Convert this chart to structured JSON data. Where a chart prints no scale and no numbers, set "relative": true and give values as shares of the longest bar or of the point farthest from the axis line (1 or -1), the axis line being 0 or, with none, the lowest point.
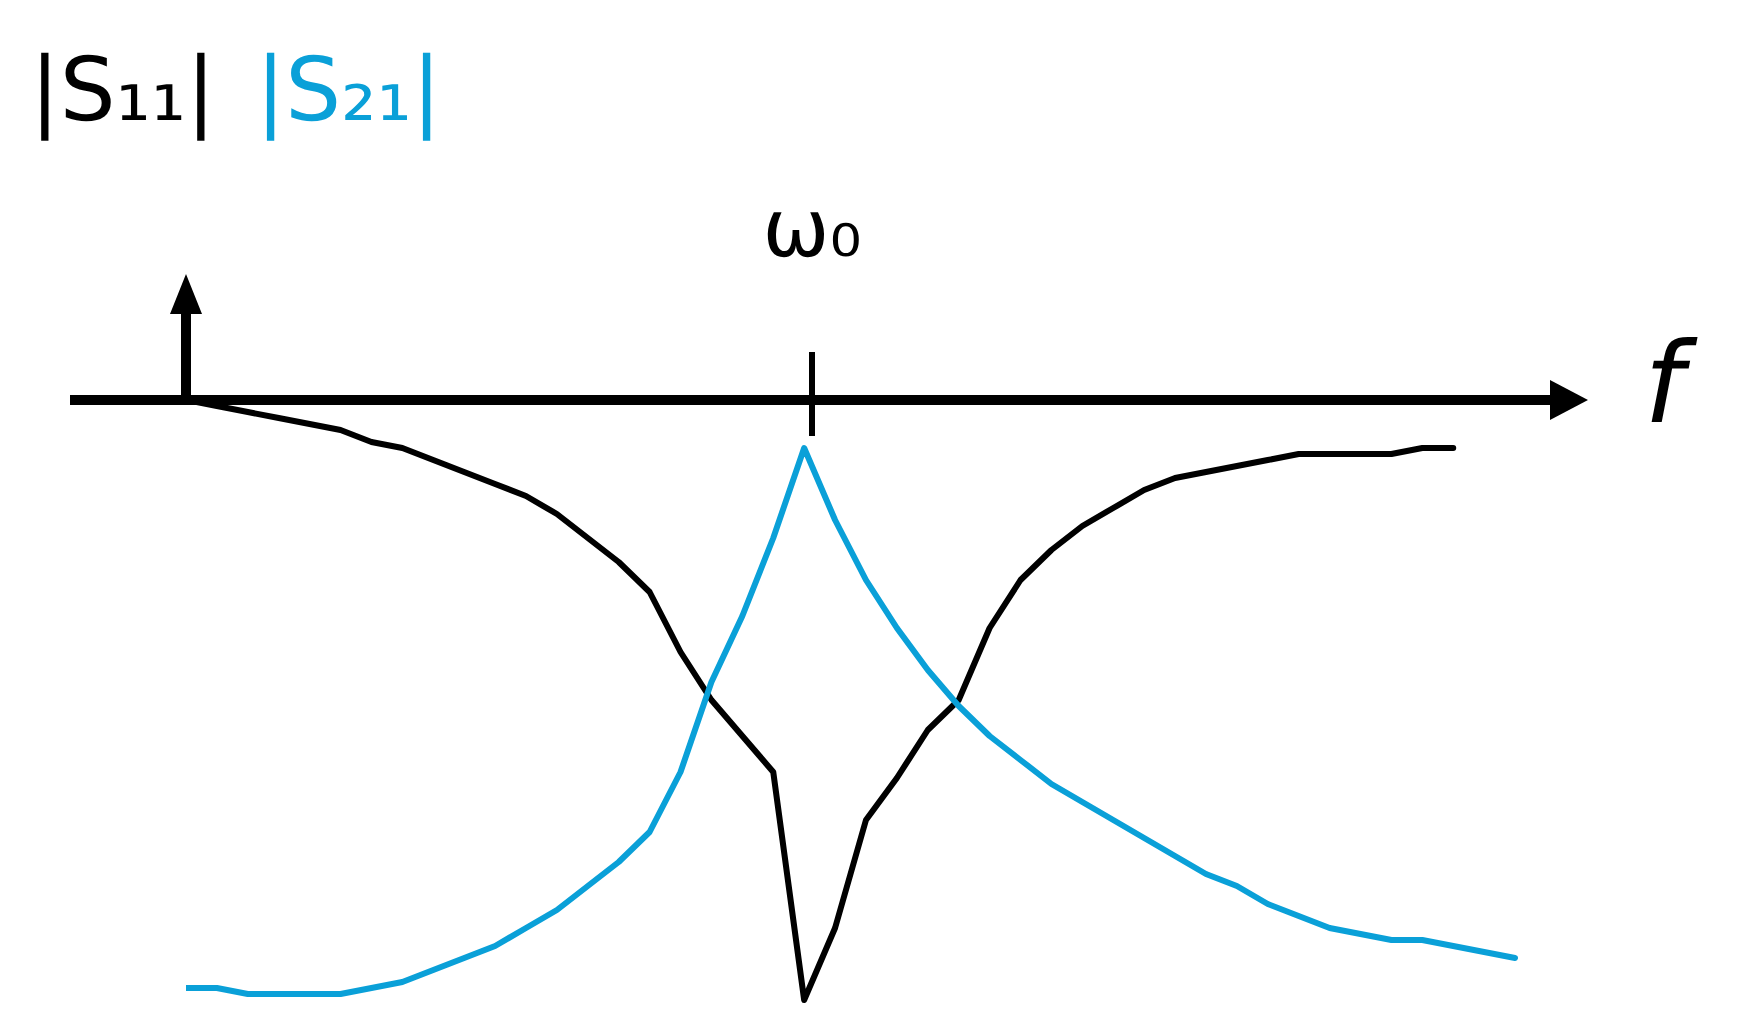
{
  "chart_data": {
    "type": "line",
    "xlabel": "f",
    "relative": true,
    "legend": "top left",
    "marker": "none",
    "line_style": "solid",
    "grid": false,
    "annotations": [
      "ω₀"
    ],
    "categories": [
      null,
      null,
      null,
      null,
      null,
      null,
      null,
      null,
      null,
      null,
      null,
      null,
      null,
      null,
      null,
      null,
      null,
      null,
      null,
      null,
      null,
      null,
      null,
      null,
      null,
      null,
      null,
      null,
      null,
      null,
      null,
      null,
      null,
      null,
      null,
      null,
      null,
      null,
      null,
      null,
      null,
      null,
      null,
      null
    ],
    "series": [
      {
        "name": "|S₁₁|",
        "color": "#000000",
        "values": [
          0,
          -0.01,
          -0.02,
          -0.03,
          -0.04,
          -0.05,
          -0.07,
          -0.08,
          -0.1,
          -0.12,
          -0.14,
          -0.16,
          -0.19,
          -0.23,
          -0.27,
          -0.32,
          -0.42,
          -0.5,
          -0.56,
          -0.62,
          -1,
          -0.88,
          -0.7,
          -0.63,
          -0.55,
          -0.5,
          -0.38,
          -0.3,
          -0.25,
          -0.21,
          -0.18,
          -0.15,
          -0.13,
          -0.12,
          -0.11,
          -0.1,
          -0.09,
          -0.09,
          -0.09,
          -0.09,
          -0.08,
          -0.08,
          null,
          null
        ]
      },
      {
        "name": "|S₂₁|",
        "color": "#0aa0d8",
        "values": [
          -0.98,
          -0.98,
          -0.99,
          -0.99,
          -0.99,
          -0.99,
          -0.98,
          -0.97,
          -0.95,
          -0.93,
          -0.91,
          -0.88,
          -0.85,
          -0.81,
          -0.77,
          -0.72,
          -0.62,
          -0.47,
          -0.36,
          -0.23,
          -0.08,
          -0.2,
          -0.3,
          -0.38,
          -0.45,
          -0.51,
          -0.56,
          -0.6,
          -0.64,
          -0.67,
          -0.7,
          -0.73,
          -0.76,
          -0.79,
          -0.81,
          -0.84,
          -0.86,
          -0.88,
          -0.89,
          -0.9,
          -0.9,
          -0.91,
          -0.92,
          -0.93
        ]
      }
    ]
  }
}
